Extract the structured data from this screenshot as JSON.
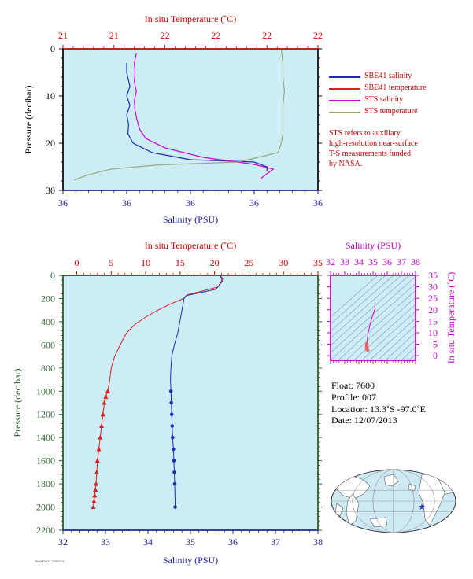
{
  "colors": {
    "plot_bg": "#ccecf6",
    "salinity": "#1f2fae",
    "temperature": "#e02020",
    "sts_salinity": "#d000d0",
    "sts_temperature": "#9aaa7a",
    "pressure_axis": "#2a5a2a",
    "temp_axis": "#cc0000",
    "sal_axis": "#2020a0",
    "magenta_axis": "#c000c0"
  },
  "top_panel": {
    "temp_axis_title": "In situ Temperature (˚C)",
    "temp_ticks": [
      "21",
      "21",
      "22",
      "22",
      "22",
      "22"
    ],
    "sal_axis_title": "Salinity (PSU)",
    "sal_ticks": [
      "36",
      "36",
      "36",
      "36",
      "36"
    ],
    "pressure_title": "Pressure (decibar)",
    "pressure_ticks": [
      "0",
      "10",
      "20",
      "30"
    ]
  },
  "legend": [
    {
      "label": "SBE41 salinity",
      "color": "#1f2fae"
    },
    {
      "label": "SBE41 temperature",
      "color": "#e02020"
    },
    {
      "label": "STS salinity",
      "color": "#d000d0"
    },
    {
      "label": "STS temperature",
      "color": "#9aaa7a"
    }
  ],
  "note": "STS refers to auxiliary\nhigh-resolution near-surface\nT-S measurements funded\nby NASA.",
  "main_panel": {
    "temp_axis_title": "In situ Temperature (˚C)",
    "temp_ticks": [
      "0",
      "5",
      "10",
      "15",
      "20",
      "25",
      "30",
      "35"
    ],
    "sal_axis_title": "Salinity (PSU)",
    "sal_ticks": [
      "32",
      "33",
      "34",
      "35",
      "36",
      "37",
      "38"
    ],
    "pressure_title": "Pressure (decibar)",
    "pressure_ticks": [
      "0",
      "200",
      "400",
      "600",
      "800",
      "1000",
      "1200",
      "1400",
      "1600",
      "1800",
      "2000",
      "2200"
    ]
  },
  "ts_panel": {
    "sal_axis_title": "Salinity (PSU)",
    "sal_ticks": [
      "32",
      "33",
      "34",
      "35",
      "36",
      "37",
      "38"
    ],
    "temp_axis_title": "In situ Temperature (˚C)",
    "temp_ticks": [
      "0",
      "5",
      "10",
      "15",
      "20",
      "25",
      "30",
      "35"
    ]
  },
  "float_info": {
    "float": "Float:  7600",
    "profile": "Profile:  007",
    "location": "Location:  13.3˚S  -97.0˚E",
    "date": "Date:  12/07/2013"
  },
  "footer": "7600 PLOT 0330374",
  "chart_data": [
    {
      "type": "line",
      "title": "",
      "x_axes": {
        "temperature": {
          "label": "In situ Temperature (˚C)",
          "range": [
            20.8,
            22.4
          ]
        },
        "salinity": {
          "label": "Salinity (PSU)",
          "range": [
            35.9,
            36.3
          ]
        }
      },
      "ylabel": "Pressure (decibar)",
      "ylim": [
        0,
        30
      ],
      "y_reversed": true,
      "series": [
        {
          "name": "SBE41 salinity",
          "axis": "salinity",
          "x": [
            36.0,
            36.0,
            36.005,
            36.0,
            36.005,
            36.0,
            36.003,
            36.002,
            36.01,
            36.04,
            36.1,
            36.2,
            36.22,
            36.22
          ],
          "y": [
            3,
            5,
            8,
            10,
            12,
            14,
            16,
            18,
            20,
            22,
            23.5,
            24,
            25,
            26
          ]
        },
        {
          "name": "SBE41 temperature",
          "axis": "temperature",
          "x": [
            22.4,
            22.4
          ],
          "y": [
            0,
            0.5
          ]
        },
        {
          "name": "STS salinity",
          "axis": "salinity",
          "x": [
            36.015,
            36.012,
            36.013,
            36.012,
            36.015,
            36.012,
            36.013,
            36.016,
            36.02,
            36.03,
            36.06,
            36.12,
            36.2,
            36.23,
            36.22,
            36.21
          ],
          "y": [
            1,
            3,
            5,
            7,
            9,
            11,
            13,
            15,
            17,
            19,
            21,
            23,
            24.5,
            25.5,
            26.5,
            27.5
          ]
        },
        {
          "name": "STS temperature",
          "axis": "temperature",
          "x": [
            22.17,
            22.18,
            22.18,
            22.19,
            22.18,
            22.18,
            22.18,
            22.17,
            22.15,
            21.9,
            21.4,
            21.1,
            20.95,
            20.87
          ],
          "y": [
            0,
            3,
            6,
            9,
            12,
            15,
            18,
            20,
            22,
            24,
            24.6,
            25.5,
            26.8,
            27.8
          ]
        }
      ]
    },
    {
      "type": "line",
      "title": "",
      "x_axes": {
        "temperature": {
          "label": "In situ Temperature (˚C)",
          "range": [
            -2,
            35
          ]
        },
        "salinity": {
          "label": "Salinity (PSU)",
          "range": [
            32,
            38
          ]
        }
      },
      "ylabel": "Pressure (decibar)",
      "ylim": [
        0,
        2200
      ],
      "y_reversed": true,
      "series": [
        {
          "name": "SBE41 temperature",
          "axis": "temperature",
          "x": [
            20.8,
            21.2,
            20.5,
            16.0,
            15.5,
            13.5,
            11.8,
            10.0,
            8.5,
            7.2,
            6.3,
            5.5,
            5.0,
            4.8,
            4.5,
            4.2,
            4.0,
            3.8,
            3.6,
            3.4,
            3.2,
            3.0,
            2.9,
            2.8,
            2.7,
            2.6,
            2.5,
            2.4
          ],
          "y": [
            0,
            30,
            100,
            170,
            200,
            250,
            300,
            360,
            420,
            500,
            600,
            700,
            800,
            900,
            1000,
            1050,
            1100,
            1200,
            1300,
            1400,
            1500,
            1600,
            1700,
            1800,
            1850,
            1900,
            1950,
            2000
          ]
        },
        {
          "name": "SBE41 salinity",
          "axis": "salinity",
          "x": [
            35.7,
            35.75,
            35.6,
            34.9,
            34.85,
            34.8,
            34.75,
            34.7,
            34.62,
            34.56,
            34.54,
            34.53,
            34.54,
            34.55,
            34.56,
            34.57,
            34.58,
            34.6,
            34.61,
            34.62,
            34.63,
            34.64
          ],
          "y": [
            0,
            50,
            120,
            175,
            200,
            300,
            400,
            500,
            600,
            700,
            800,
            900,
            1000,
            1100,
            1200,
            1300,
            1400,
            1500,
            1600,
            1700,
            1800,
            2000
          ]
        }
      ]
    },
    {
      "type": "scatter",
      "title": "",
      "xlabel": "Salinity (PSU)",
      "ylabel": "In situ Temperature (˚C)",
      "xlim": [
        32,
        38
      ],
      "ylim": [
        -2,
        35
      ],
      "series": [
        {
          "name": "",
          "x": [
            35.1,
            35.15,
            35.0,
            34.85,
            34.75,
            34.65,
            34.6,
            34.58,
            34.56,
            34.55,
            34.55,
            34.56,
            34.6,
            34.62
          ],
          "y": [
            21.5,
            20.5,
            18.0,
            15.0,
            12.5,
            10.0,
            7.5,
            6.0,
            5.0,
            4.0,
            3.5,
            3.0,
            2.6,
            2.4
          ]
        }
      ]
    }
  ]
}
